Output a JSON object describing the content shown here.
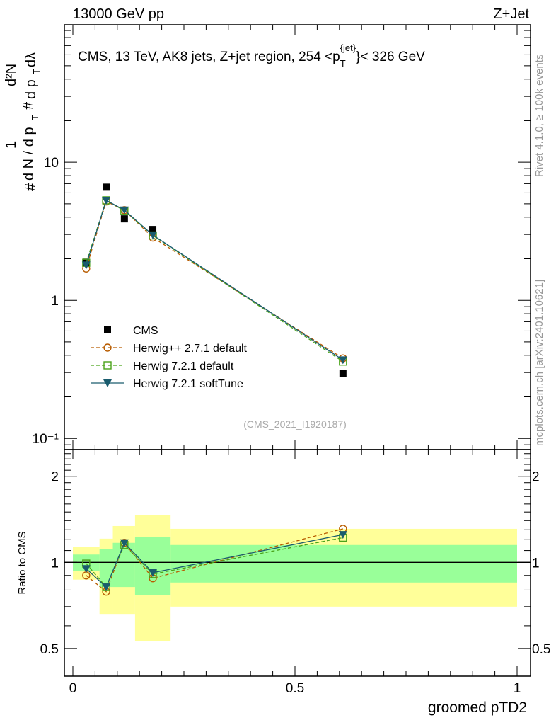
{
  "header": {
    "left": "13000 GeV pp",
    "right": "Z+Jet"
  },
  "side_labels": {
    "rivet": "Rivet 4.1.0, ≥ 100k events",
    "mcplots": "mcplots.cern.ch [arXiv:2401.10621]"
  },
  "chart_data": [
    {
      "type": "line",
      "title": "CMS, 13 TeV, AK8 jets, Z+jet region, 254 <p_T^{jet}< 326 GeV",
      "title_parts": {
        "a": "CMS, 13 TeV, AK8 jets, Z+jet region, 254 <p",
        "sub": "T",
        "sup": "{jet}",
        "b": "}< 326 GeV"
      },
      "ylabel": "1/N dN/dp_T d^2N/dp_T dλ",
      "ylabel_parts": {
        "hash": "#",
        "one": "1",
        "dn": "d N / d p",
        "t": "T",
        "num": "d²N",
        "den": "d p",
        "dl": " dλ"
      },
      "yscale": "log",
      "ylim": [
        0.083,
        99
      ],
      "yticks": [
        {
          "v": 0.1,
          "label": "10⁻¹"
        },
        {
          "v": 1,
          "label": "1"
        },
        {
          "v": 10,
          "label": "10"
        }
      ],
      "xlim": [
        -0.02,
        1.03
      ],
      "x": [
        0.03,
        0.075,
        0.116,
        0.18,
        0.608
      ],
      "series": [
        {
          "name": "CMS",
          "values": [
            1.89,
            6.6,
            3.89,
            3.26,
            0.296
          ],
          "color": "#000000",
          "marker": "square"
        },
        {
          "name": "Herwig++ 2.7.1 default",
          "values": [
            1.7,
            5.2,
            4.5,
            2.85,
            0.38
          ],
          "color": "#b85c00",
          "marker": "circle",
          "dash": true
        },
        {
          "name": "Herwig 7.2.1 default",
          "values": [
            1.87,
            5.3,
            4.45,
            2.95,
            0.36
          ],
          "color": "#4aa31a",
          "marker": "open-square",
          "dash": true
        },
        {
          "name": "Herwig 7.2.1 softTune",
          "values": [
            1.8,
            5.3,
            4.5,
            2.97,
            0.37
          ],
          "color": "#1a5c6e",
          "marker": "triangle-down"
        }
      ],
      "legend_position": "lower-left",
      "annotation": "(CMS_2021_I1920187)"
    },
    {
      "type": "line",
      "ylabel": "Ratio to CMS",
      "xlabel": "groomed pTD2",
      "yscale": "log",
      "ylim": [
        0.4,
        2.48
      ],
      "yticks": [
        {
          "v": 0.5,
          "label": "0.5"
        },
        {
          "v": 1,
          "label": "1"
        },
        {
          "v": 2,
          "label": "2"
        }
      ],
      "xticks": [
        {
          "v": 0,
          "label": "0"
        },
        {
          "v": 0.5,
          "label": "0.5"
        },
        {
          "v": 1,
          "label": "1"
        }
      ],
      "bin_edges": [
        0,
        0.06,
        0.09,
        0.14,
        0.22,
        1.0
      ],
      "band_yellow": [
        [
          0.87,
          1.13
        ],
        [
          0.66,
          1.21
        ],
        [
          0.66,
          1.34
        ],
        [
          0.53,
          1.46
        ],
        [
          0.7,
          1.31
        ]
      ],
      "band_green": [
        [
          0.935,
          1.065
        ],
        [
          0.82,
          1.11
        ],
        [
          0.82,
          1.17
        ],
        [
          0.77,
          1.23
        ],
        [
          0.85,
          1.15
        ]
      ],
      "x": [
        0.03,
        0.075,
        0.116,
        0.18,
        0.608
      ],
      "series": [
        {
          "name": "Herwig++ 2.7.1 default",
          "values": [
            0.9,
            0.79,
            1.17,
            0.88,
            1.31
          ]
        },
        {
          "name": "Herwig 7.2.1 default",
          "values": [
            0.99,
            0.82,
            1.15,
            0.91,
            1.22
          ]
        },
        {
          "name": "Herwig 7.2.1 softTune",
          "values": [
            0.95,
            0.82,
            1.17,
            0.92,
            1.25
          ]
        }
      ]
    }
  ]
}
